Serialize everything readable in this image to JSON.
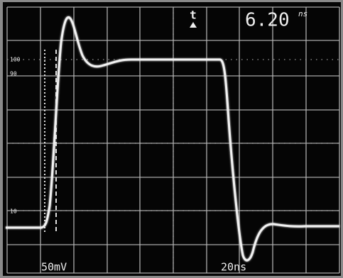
{
  "readout": {
    "value": "6.20",
    "unit": "ns"
  },
  "trigger_label": "t",
  "levels": [
    "100",
    "90",
    "10"
  ],
  "settings": {
    "volts_per_div": "50mV",
    "time_per_div": "20ns"
  }
}
